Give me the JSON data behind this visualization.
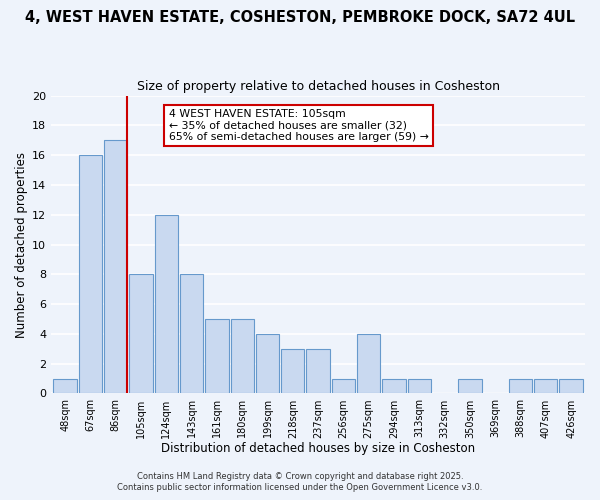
{
  "title": "4, WEST HAVEN ESTATE, COSHESTON, PEMBROKE DOCK, SA72 4UL",
  "subtitle": "Size of property relative to detached houses in Cosheston",
  "xlabel": "Distribution of detached houses by size in Cosheston",
  "ylabel": "Number of detached properties",
  "bar_labels": [
    "48sqm",
    "67sqm",
    "86sqm",
    "105sqm",
    "124sqm",
    "143sqm",
    "161sqm",
    "180sqm",
    "199sqm",
    "218sqm",
    "237sqm",
    "256sqm",
    "275sqm",
    "294sqm",
    "313sqm",
    "332sqm",
    "350sqm",
    "369sqm",
    "388sqm",
    "407sqm",
    "426sqm"
  ],
  "bar_values": [
    1,
    16,
    17,
    8,
    12,
    8,
    5,
    5,
    4,
    3,
    3,
    1,
    4,
    1,
    1,
    0,
    1,
    0,
    1,
    1,
    1
  ],
  "red_line_index": 2,
  "bar_color": "#c9d9f0",
  "bar_edge_color": "#6699cc",
  "red_line_color": "#cc0000",
  "annotation_text": "4 WEST HAVEN ESTATE: 105sqm\n← 35% of detached houses are smaller (32)\n65% of semi-detached houses are larger (59) →",
  "ylim": [
    0,
    20
  ],
  "yticks": [
    0,
    2,
    4,
    6,
    8,
    10,
    12,
    14,
    16,
    18,
    20
  ],
  "footer1": "Contains HM Land Registry data © Crown copyright and database right 2025.",
  "footer2": "Contains public sector information licensed under the Open Government Licence v3.0.",
  "bg_color": "#eef3fb",
  "grid_color": "#ffffff",
  "title_fontsize": 10.5,
  "subtitle_fontsize": 9
}
